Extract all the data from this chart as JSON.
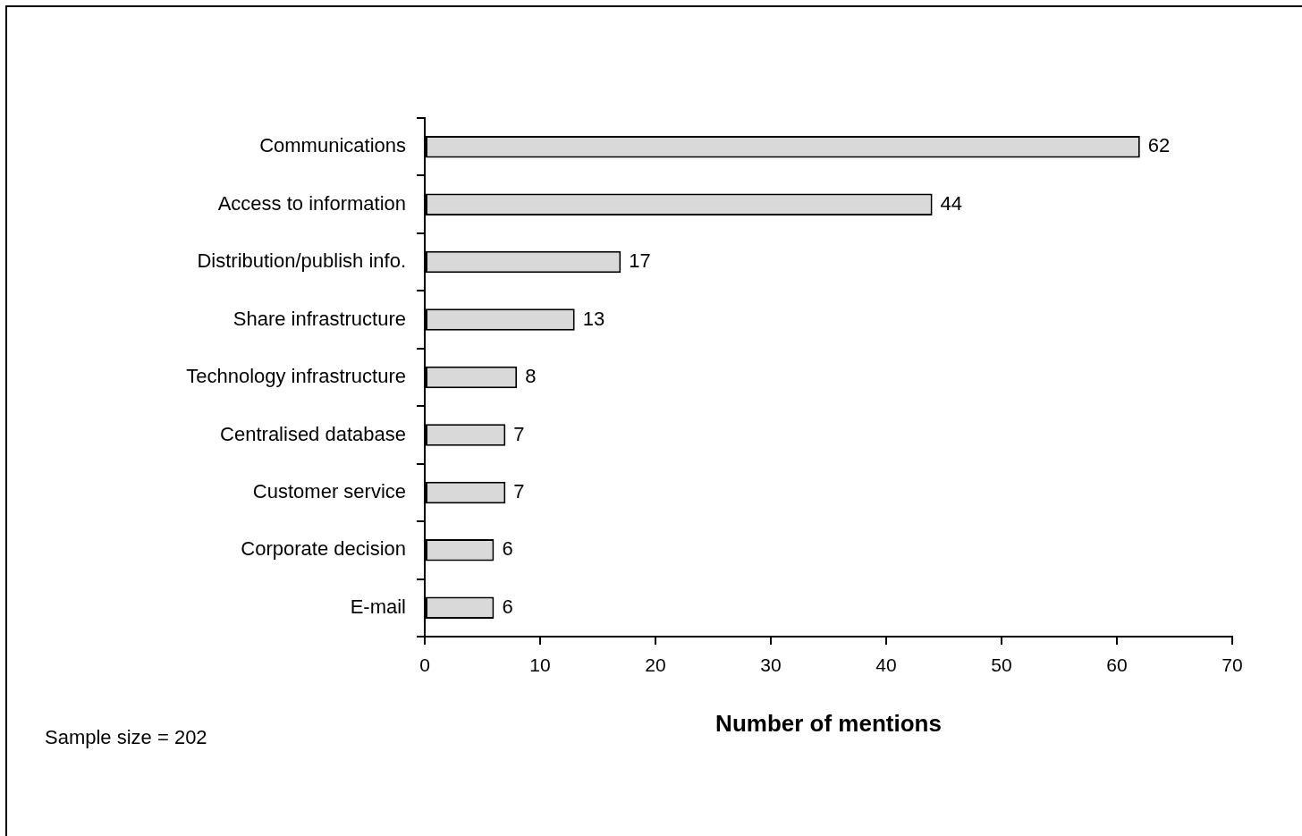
{
  "chart_data": {
    "type": "bar",
    "orientation": "horizontal",
    "categories": [
      "Communications",
      "Access to information",
      "Distribution/publish info.",
      "Share infrastructure",
      "Technology infrastructure",
      "Centralised database",
      "Customer service",
      "Corporate decision",
      "E-mail"
    ],
    "values": [
      62,
      44,
      17,
      13,
      8,
      7,
      7,
      6,
      6
    ],
    "color": "#d9d9d9",
    "xlim": [
      0,
      70
    ],
    "xticks": [
      0,
      10,
      20,
      30,
      40,
      50,
      60,
      70
    ],
    "xlabel": "Number of mentions",
    "data_labels": true,
    "grid": false,
    "legend": false,
    "annotations": [
      "Sample size = 202"
    ]
  }
}
